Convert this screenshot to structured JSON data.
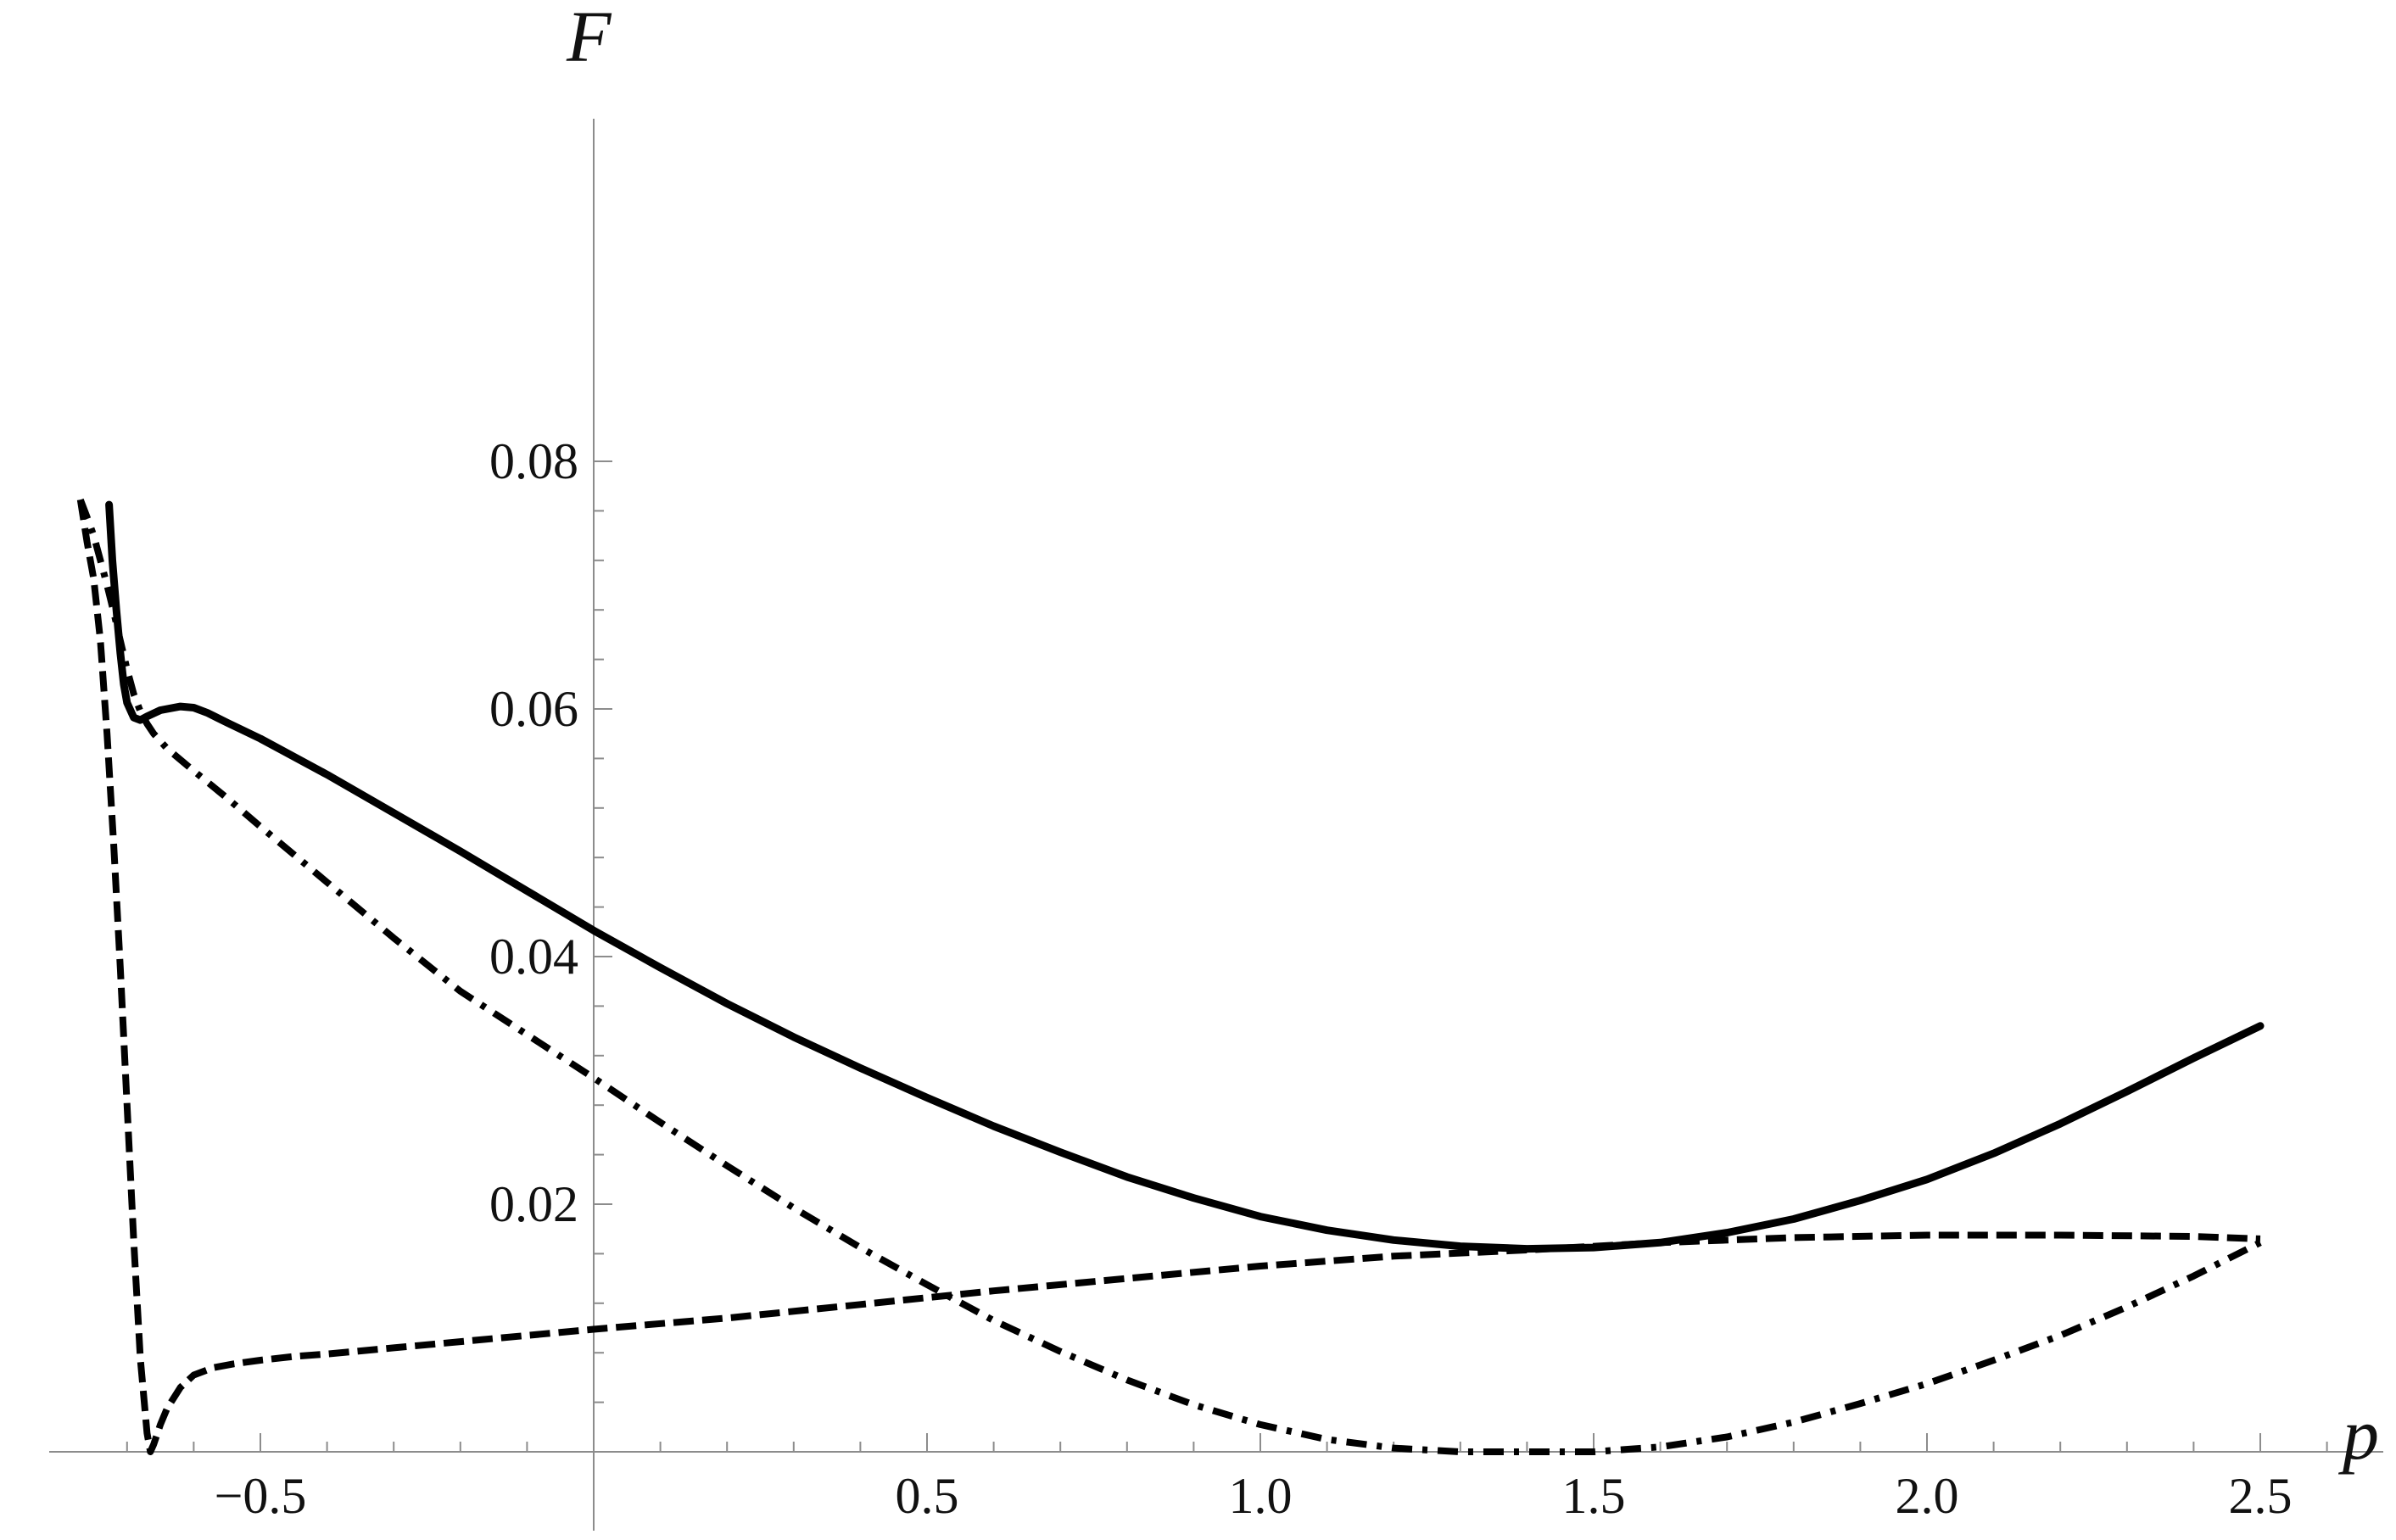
{
  "chart_data": {
    "type": "line",
    "title": "",
    "xlabel": "p",
    "ylabel": "F",
    "xlim": [
      -0.8,
      2.7
    ],
    "ylim": [
      0,
      0.08
    ],
    "grid": false,
    "legend": "none",
    "x_ticks": [
      {
        "value": -0.5,
        "label": "−0.5"
      },
      {
        "value": 0.5,
        "label": "0.5"
      },
      {
        "value": 1.0,
        "label": "1.0"
      },
      {
        "value": 1.5,
        "label": "1.5"
      },
      {
        "value": 2.0,
        "label": "2.0"
      },
      {
        "value": 2.5,
        "label": "2.5"
      }
    ],
    "x_minor_ticks": [
      -0.7,
      -0.6,
      -0.4,
      -0.3,
      -0.2,
      -0.1,
      0.1,
      0.2,
      0.3,
      0.4,
      0.6,
      0.7,
      0.8,
      0.9,
      1.1,
      1.2,
      1.3,
      1.4,
      1.6,
      1.7,
      1.8,
      1.9,
      2.1,
      2.2,
      2.3,
      2.4,
      2.6
    ],
    "y_ticks": [
      {
        "value": 0.02,
        "label": "0.02"
      },
      {
        "value": 0.04,
        "label": "0.04"
      },
      {
        "value": 0.06,
        "label": "0.06"
      },
      {
        "value": 0.08,
        "label": "0.08"
      }
    ],
    "y_minor_ticks": [
      0.004,
      0.008,
      0.012,
      0.016,
      0.024,
      0.028,
      0.032,
      0.036,
      0.044,
      0.048,
      0.052,
      0.056,
      0.064,
      0.068,
      0.072,
      0.076
    ],
    "series": [
      {
        "style": "solid",
        "color": "#000000",
        "x": [
          -0.727,
          -0.722,
          -0.716,
          -0.71,
          -0.705,
          -0.7,
          -0.69,
          -0.68,
          -0.67,
          -0.65,
          -0.62,
          -0.6,
          -0.58,
          -0.55,
          -0.5,
          -0.4,
          -0.3,
          -0.2,
          -0.1,
          0.0,
          0.1,
          0.2,
          0.3,
          0.4,
          0.5,
          0.6,
          0.7,
          0.8,
          0.9,
          1.0,
          1.1,
          1.2,
          1.3,
          1.4,
          1.5,
          1.6,
          1.7,
          1.8,
          1.9,
          2.0,
          2.1,
          2.2,
          2.3,
          2.4,
          2.5
        ],
        "y": [
          0.0765,
          0.072,
          0.068,
          0.0645,
          0.062,
          0.0605,
          0.0593,
          0.0591,
          0.0594,
          0.0599,
          0.0602,
          0.0601,
          0.0597,
          0.0589,
          0.0576,
          0.0547,
          0.0516,
          0.0485,
          0.0453,
          0.0421,
          0.0391,
          0.0362,
          0.0335,
          0.031,
          0.0286,
          0.0263,
          0.0242,
          0.0222,
          0.0205,
          0.019,
          0.0179,
          0.0171,
          0.0166,
          0.0164,
          0.0165,
          0.0169,
          0.0177,
          0.0188,
          0.0203,
          0.022,
          0.0241,
          0.0265,
          0.0291,
          0.0318,
          0.0344
        ]
      },
      {
        "style": "dashed",
        "color": "#000000",
        "x": [
          -0.77,
          -0.76,
          -0.75,
          -0.74,
          -0.73,
          -0.72,
          -0.71,
          -0.7,
          -0.69,
          -0.68,
          -0.67,
          -0.665,
          -0.66,
          -0.65,
          -0.64,
          -0.62,
          -0.6,
          -0.57,
          -0.54,
          -0.5,
          -0.45,
          -0.4,
          -0.3,
          -0.2,
          -0.1,
          0.0,
          0.2,
          0.4,
          0.6,
          0.8,
          1.0,
          1.2,
          1.4,
          1.6,
          1.8,
          2.0,
          2.2,
          2.4,
          2.5
        ],
        "y": [
          0.0769,
          0.0735,
          0.0705,
          0.0655,
          0.058,
          0.049,
          0.039,
          0.028,
          0.017,
          0.0075,
          0.0015,
          0.0,
          0.0006,
          0.0022,
          0.0035,
          0.0052,
          0.0062,
          0.0068,
          0.0071,
          0.0074,
          0.0077,
          0.0079,
          0.0084,
          0.0089,
          0.0094,
          0.0099,
          0.0108,
          0.0119,
          0.013,
          0.014,
          0.015,
          0.0158,
          0.0163,
          0.0169,
          0.0173,
          0.0175,
          0.0175,
          0.0174,
          0.0172
        ]
      },
      {
        "style": "dashdot",
        "color": "#000000",
        "x": [
          -0.77,
          -0.76,
          -0.75,
          -0.74,
          -0.73,
          -0.72,
          -0.71,
          -0.7,
          -0.69,
          -0.68,
          -0.67,
          -0.66,
          -0.64,
          -0.6,
          -0.55,
          -0.5,
          -0.4,
          -0.3,
          -0.2,
          -0.1,
          0.0,
          0.1,
          0.2,
          0.3,
          0.4,
          0.5,
          0.6,
          0.7,
          0.8,
          0.9,
          1.0,
          1.1,
          1.2,
          1.3,
          1.4,
          1.5,
          1.6,
          1.7,
          1.8,
          1.9,
          2.0,
          2.1,
          2.2,
          2.3,
          2.4,
          2.5
        ],
        "y": [
          0.0769,
          0.0755,
          0.074,
          0.072,
          0.07,
          0.0678,
          0.0655,
          0.0632,
          0.0612,
          0.0598,
          0.0588,
          0.058,
          0.0568,
          0.055,
          0.0528,
          0.0505,
          0.046,
          0.0415,
          0.0372,
          0.0337,
          0.0302,
          0.0266,
          0.0231,
          0.0197,
          0.0165,
          0.0135,
          0.0106,
          0.0081,
          0.0058,
          0.0038,
          0.0022,
          0.001,
          0.0003,
          0.0,
          0.0,
          0.0,
          0.0004,
          0.0012,
          0.0024,
          0.0039,
          0.0055,
          0.0074,
          0.0094,
          0.0117,
          0.0142,
          0.0169
        ]
      }
    ]
  }
}
